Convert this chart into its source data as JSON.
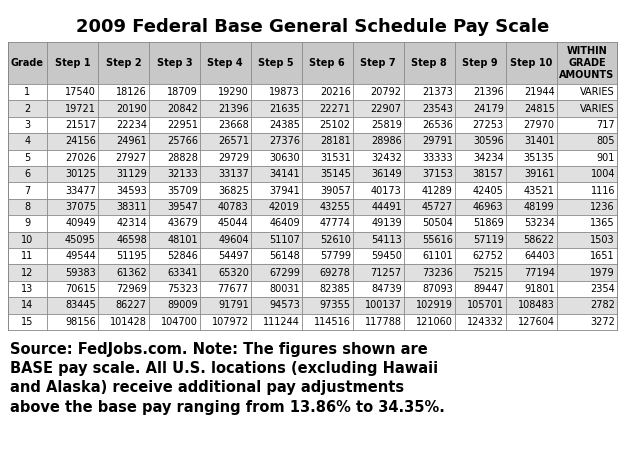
{
  "title": "2009 Federal Base General Schedule Pay Scale",
  "columns": [
    "Grade",
    "Step 1",
    "Step 2",
    "Step 3",
    "Step 4",
    "Step 5",
    "Step 6",
    "Step 7",
    "Step 8",
    "Step 9",
    "Step 10",
    "WITHIN\nGRADE\nAMOUNTS"
  ],
  "rows": [
    [
      "1",
      "17540",
      "18126",
      "18709",
      "19290",
      "19873",
      "20216",
      "20792",
      "21373",
      "21396",
      "21944",
      "VARIES"
    ],
    [
      "2",
      "19721",
      "20190",
      "20842",
      "21396",
      "21635",
      "22271",
      "22907",
      "23543",
      "24179",
      "24815",
      "VARIES"
    ],
    [
      "3",
      "21517",
      "22234",
      "22951",
      "23668",
      "24385",
      "25102",
      "25819",
      "26536",
      "27253",
      "27970",
      "717"
    ],
    [
      "4",
      "24156",
      "24961",
      "25766",
      "26571",
      "27376",
      "28181",
      "28986",
      "29791",
      "30596",
      "31401",
      "805"
    ],
    [
      "5",
      "27026",
      "27927",
      "28828",
      "29729",
      "30630",
      "31531",
      "32432",
      "33333",
      "34234",
      "35135",
      "901"
    ],
    [
      "6",
      "30125",
      "31129",
      "32133",
      "33137",
      "34141",
      "35145",
      "36149",
      "37153",
      "38157",
      "39161",
      "1004"
    ],
    [
      "7",
      "33477",
      "34593",
      "35709",
      "36825",
      "37941",
      "39057",
      "40173",
      "41289",
      "42405",
      "43521",
      "1116"
    ],
    [
      "8",
      "37075",
      "38311",
      "39547",
      "40783",
      "42019",
      "43255",
      "44491",
      "45727",
      "46963",
      "48199",
      "1236"
    ],
    [
      "9",
      "40949",
      "42314",
      "43679",
      "45044",
      "46409",
      "47774",
      "49139",
      "50504",
      "51869",
      "53234",
      "1365"
    ],
    [
      "10",
      "45095",
      "46598",
      "48101",
      "49604",
      "51107",
      "52610",
      "54113",
      "55616",
      "57119",
      "58622",
      "1503"
    ],
    [
      "11",
      "49544",
      "51195",
      "52846",
      "54497",
      "56148",
      "57799",
      "59450",
      "61101",
      "62752",
      "64403",
      "1651"
    ],
    [
      "12",
      "59383",
      "61362",
      "63341",
      "65320",
      "67299",
      "69278",
      "71257",
      "73236",
      "75215",
      "77194",
      "1979"
    ],
    [
      "13",
      "70615",
      "72969",
      "75323",
      "77677",
      "80031",
      "82385",
      "84739",
      "87093",
      "89447",
      "91801",
      "2354"
    ],
    [
      "14",
      "83445",
      "86227",
      "89009",
      "91791",
      "94573",
      "97355",
      "100137",
      "102919",
      "105701",
      "108483",
      "2782"
    ],
    [
      "15",
      "98156",
      "101428",
      "104700",
      "107972",
      "111244",
      "114516",
      "117788",
      "121060",
      "124332",
      "127604",
      "3272"
    ]
  ],
  "footer": "Source: FedJobs.com. Note: The figures shown are\nBASE pay scale. All U.S. locations (excluding Hawaii\nand Alaska) receive additional pay adjustments\nabove the base pay ranging from 13.86% to 34.35%.",
  "bg_color": "#ffffff",
  "header_bg": "#c8c8c8",
  "row_bg_white": "#ffffff",
  "row_bg_gray": "#e0e0e0",
  "border_color": "#888888",
  "title_fontsize": 13,
  "table_fontsize": 7,
  "footer_fontsize": 10.5
}
